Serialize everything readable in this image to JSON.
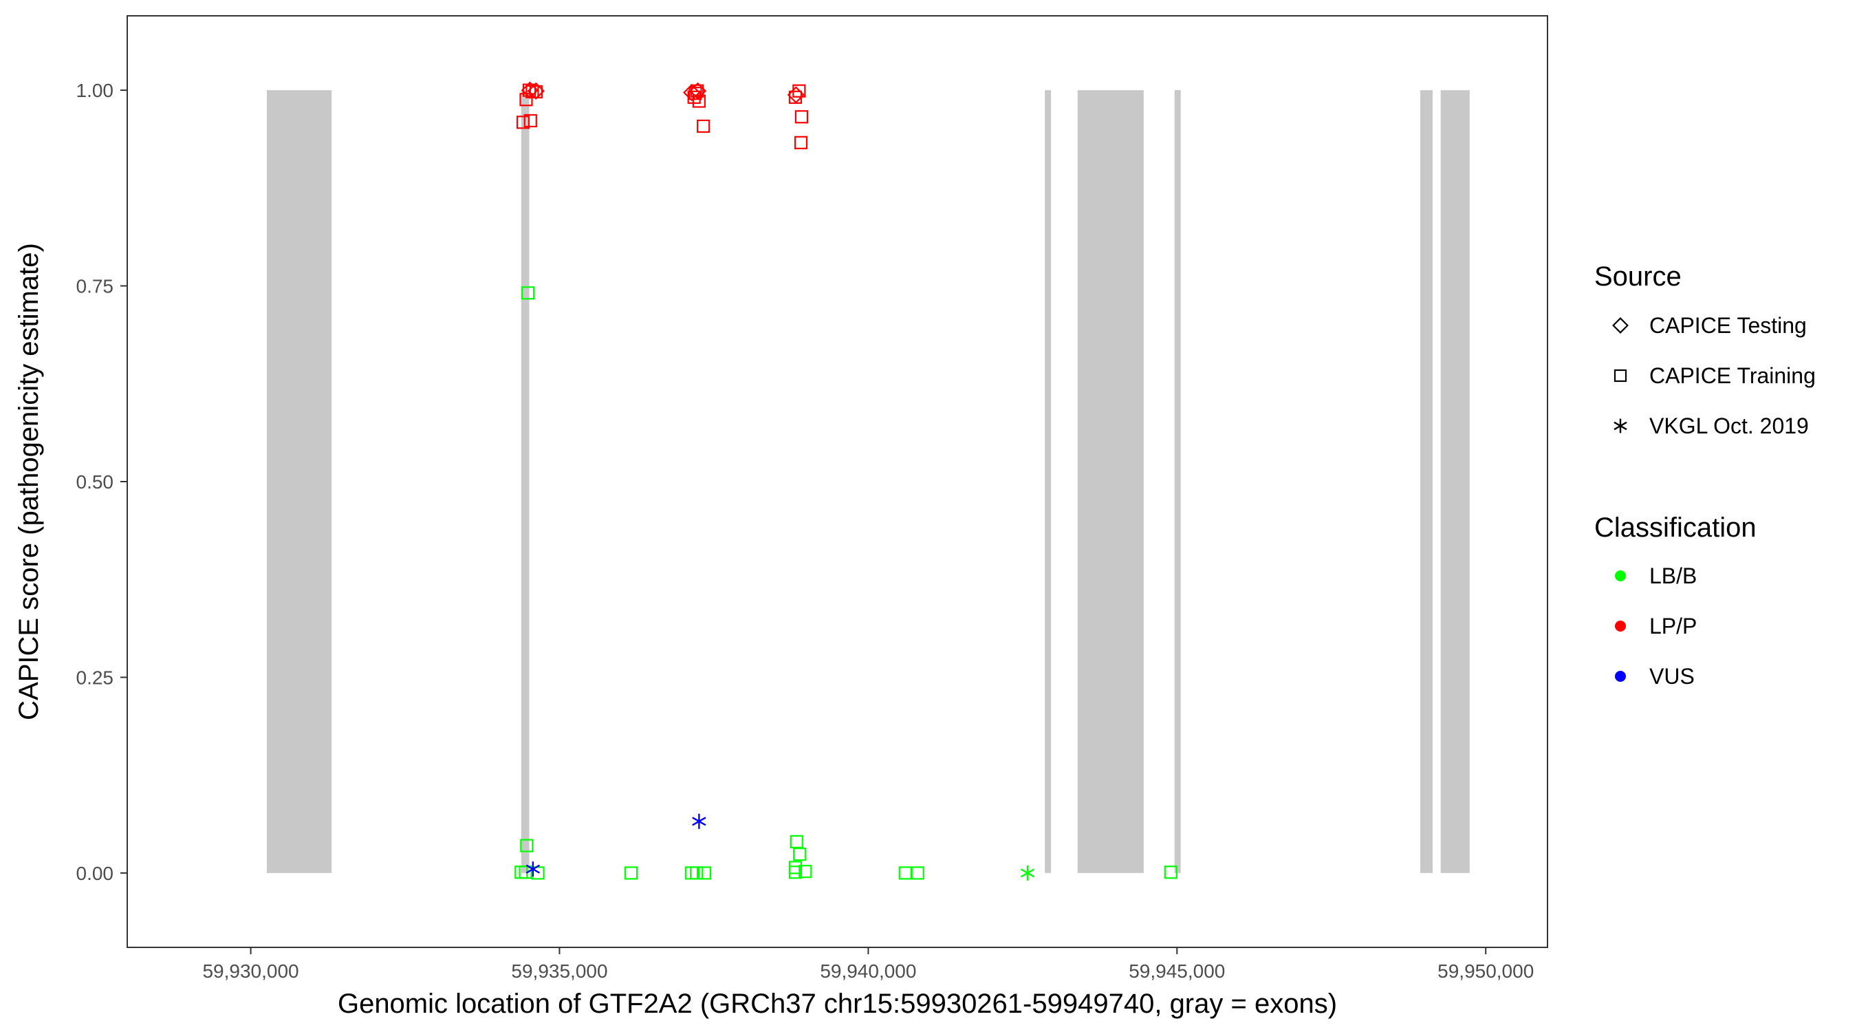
{
  "chart_data": {
    "type": "scatter",
    "xlabel": "Genomic location of GTF2A2 (GRCh37 chr15:59930261-59949740, gray = exons)",
    "ylabel": "CAPICE score (pathogenicity estimate)",
    "xlim": [
      59928000,
      59951000
    ],
    "ylim": [
      -0.095,
      1.095
    ],
    "x_ticks": [
      59930000,
      59935000,
      59940000,
      59945000,
      59950000
    ],
    "x_tick_labels": [
      "59,930,000",
      "59,935,000",
      "59,940,000",
      "59,945,000",
      "59,950,000"
    ],
    "y_ticks": [
      0,
      0.25,
      0.5,
      0.75,
      1.0
    ],
    "y_tick_labels": [
      "0.00",
      "0.25",
      "0.50",
      "0.75",
      "1.00"
    ],
    "grid": false,
    "exon_color": "#c8c8c8",
    "exons": [
      {
        "start": 59930261,
        "end": 59931310
      },
      {
        "start": 59934380,
        "end": 59934510
      },
      {
        "start": 59942860,
        "end": 59942960
      },
      {
        "start": 59943390,
        "end": 59944460
      },
      {
        "start": 59944960,
        "end": 59945060
      },
      {
        "start": 59948940,
        "end": 59949140
      },
      {
        "start": 59949270,
        "end": 59949740
      }
    ],
    "legend": {
      "placement": "right",
      "source_title": "Source",
      "source_items": [
        {
          "label": "CAPICE Testing",
          "shape": "diamond"
        },
        {
          "label": "CAPICE Training",
          "shape": "square"
        },
        {
          "label": "VKGL Oct. 2019",
          "shape": "asterisk"
        }
      ],
      "class_title": "Classification",
      "class_items": [
        {
          "label": "LB/B",
          "color": "#00ff00"
        },
        {
          "label": "LP/P",
          "color": "#ff0000"
        },
        {
          "label": "VUS",
          "color": "#0000ff"
        }
      ]
    },
    "points": [
      {
        "x": 59934520,
        "y": 1.0,
        "shape": "diamond",
        "cls": "LP/P"
      },
      {
        "x": 59934620,
        "y": 0.999,
        "shape": "diamond",
        "cls": "LP/P"
      },
      {
        "x": 59937140,
        "y": 0.997,
        "shape": "diamond",
        "cls": "LP/P"
      },
      {
        "x": 59937240,
        "y": 0.999,
        "shape": "diamond",
        "cls": "LP/P"
      },
      {
        "x": 59938830,
        "y": 0.994,
        "shape": "diamond",
        "cls": "LP/P"
      },
      {
        "x": 59934510,
        "y": 1.0,
        "shape": "square",
        "cls": "LP/P"
      },
      {
        "x": 59934560,
        "y": 0.998,
        "shape": "square",
        "cls": "LP/P"
      },
      {
        "x": 59934620,
        "y": 0.998,
        "shape": "square",
        "cls": "LP/P"
      },
      {
        "x": 59934460,
        "y": 0.988,
        "shape": "square",
        "cls": "LP/P"
      },
      {
        "x": 59934410,
        "y": 0.959,
        "shape": "square",
        "cls": "LP/P"
      },
      {
        "x": 59934530,
        "y": 0.961,
        "shape": "square",
        "cls": "LP/P"
      },
      {
        "x": 59937230,
        "y": 0.999,
        "shape": "square",
        "cls": "LP/P"
      },
      {
        "x": 59937200,
        "y": 0.996,
        "shape": "square",
        "cls": "LP/P"
      },
      {
        "x": 59937180,
        "y": 0.991,
        "shape": "square",
        "cls": "LP/P"
      },
      {
        "x": 59937260,
        "y": 0.986,
        "shape": "square",
        "cls": "LP/P"
      },
      {
        "x": 59937330,
        "y": 0.954,
        "shape": "square",
        "cls": "LP/P"
      },
      {
        "x": 59938880,
        "y": 0.999,
        "shape": "square",
        "cls": "LP/P"
      },
      {
        "x": 59938820,
        "y": 0.991,
        "shape": "square",
        "cls": "LP/P"
      },
      {
        "x": 59938920,
        "y": 0.966,
        "shape": "square",
        "cls": "LP/P"
      },
      {
        "x": 59938910,
        "y": 0.933,
        "shape": "square",
        "cls": "LP/P"
      },
      {
        "x": 59934490,
        "y": 0.741,
        "shape": "square",
        "cls": "LB/B"
      },
      {
        "x": 59934470,
        "y": 0.035,
        "shape": "square",
        "cls": "LB/B"
      },
      {
        "x": 59934380,
        "y": 0.001,
        "shape": "square",
        "cls": "LB/B"
      },
      {
        "x": 59934450,
        "y": 0.001,
        "shape": "square",
        "cls": "LB/B"
      },
      {
        "x": 59934650,
        "y": 0.0,
        "shape": "square",
        "cls": "LB/B"
      },
      {
        "x": 59936160,
        "y": 0.0,
        "shape": "square",
        "cls": "LB/B"
      },
      {
        "x": 59937140,
        "y": 0.0,
        "shape": "square",
        "cls": "LB/B"
      },
      {
        "x": 59937220,
        "y": 0.0,
        "shape": "square",
        "cls": "LB/B"
      },
      {
        "x": 59937350,
        "y": 0.0,
        "shape": "square",
        "cls": "LB/B"
      },
      {
        "x": 59938840,
        "y": 0.04,
        "shape": "square",
        "cls": "LB/B"
      },
      {
        "x": 59938890,
        "y": 0.024,
        "shape": "square",
        "cls": "LB/B"
      },
      {
        "x": 59938820,
        "y": 0.007,
        "shape": "square",
        "cls": "LB/B"
      },
      {
        "x": 59938820,
        "y": 0.001,
        "shape": "square",
        "cls": "LB/B"
      },
      {
        "x": 59938980,
        "y": 0.002,
        "shape": "square",
        "cls": "LB/B"
      },
      {
        "x": 59940600,
        "y": 0.0,
        "shape": "square",
        "cls": "LB/B"
      },
      {
        "x": 59940800,
        "y": 0.0,
        "shape": "square",
        "cls": "LB/B"
      },
      {
        "x": 59944900,
        "y": 0.001,
        "shape": "square",
        "cls": "LB/B"
      },
      {
        "x": 59942580,
        "y": 0.0,
        "shape": "asterisk",
        "cls": "LB/B"
      },
      {
        "x": 59934570,
        "y": 0.005,
        "shape": "asterisk",
        "cls": "VUS"
      },
      {
        "x": 59937260,
        "y": 0.066,
        "shape": "asterisk",
        "cls": "VUS"
      }
    ]
  }
}
